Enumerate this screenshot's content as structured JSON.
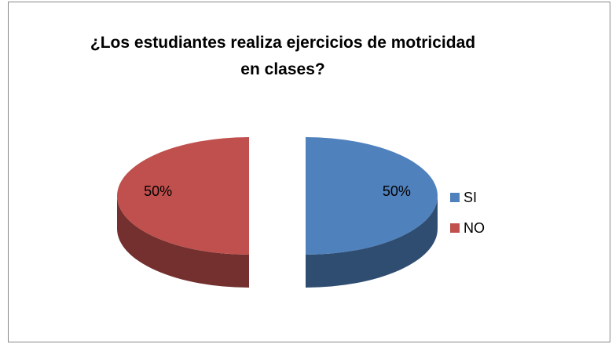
{
  "chart_data": {
    "type": "pie",
    "title": "¿Los estudiantes realiza ejercicios de motricidad en clases?",
    "categories": [
      "SI",
      "NO"
    ],
    "values": [
      50,
      50
    ],
    "value_labels": [
      "50%",
      "50%"
    ],
    "colors": [
      "#4f81bd",
      "#c0504d"
    ],
    "legend": "right"
  }
}
